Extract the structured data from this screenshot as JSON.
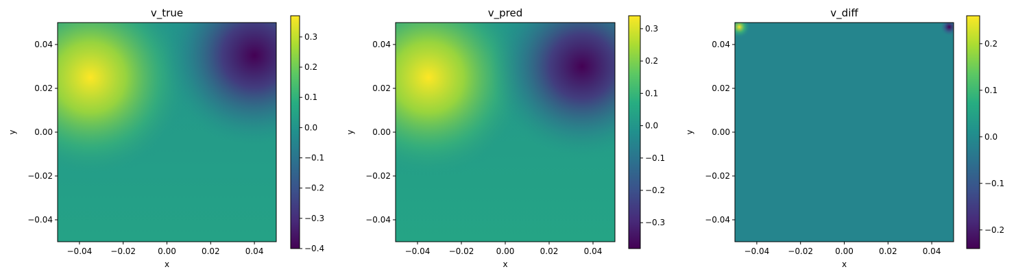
{
  "chart_data": [
    {
      "type": "heatmap",
      "title": "v_true",
      "xlabel": "x",
      "ylabel": "y",
      "xlim": [
        -0.05,
        0.05
      ],
      "ylim": [
        -0.05,
        0.05
      ],
      "xticks": [
        "−0.04",
        "−0.02",
        "0.00",
        "0.02",
        "0.04"
      ],
      "xtick_values": [
        -0.04,
        -0.02,
        0.0,
        0.02,
        0.04
      ],
      "yticks": [
        "−0.04",
        "−0.02",
        "0.00",
        "0.02",
        "0.04"
      ],
      "ytick_values": [
        -0.04,
        -0.02,
        0.0,
        0.02,
        0.04
      ],
      "colorbar": {
        "range": [
          -0.4,
          0.37
        ],
        "ticks": [
          "−0.4",
          "−0.3",
          "−0.2",
          "−0.1",
          "0.0",
          "0.1",
          "0.2",
          "0.3"
        ],
        "tick_values": [
          -0.4,
          -0.3,
          -0.2,
          -0.1,
          0.0,
          0.1,
          0.2,
          0.3
        ]
      },
      "colormap": "viridis",
      "features": [
        {
          "kind": "max",
          "x": -0.035,
          "y": 0.025,
          "value": 0.37
        },
        {
          "kind": "min",
          "x": 0.04,
          "y": 0.035,
          "value": -0.4
        }
      ]
    },
    {
      "type": "heatmap",
      "title": "v_pred",
      "xlabel": "x",
      "ylabel": "y",
      "xlim": [
        -0.05,
        0.05
      ],
      "ylim": [
        -0.05,
        0.05
      ],
      "xticks": [
        "−0.04",
        "−0.02",
        "0.00",
        "0.02",
        "0.04"
      ],
      "xtick_values": [
        -0.04,
        -0.02,
        0.0,
        0.02,
        0.04
      ],
      "yticks": [
        "−0.04",
        "−0.02",
        "0.00",
        "0.02",
        "0.04"
      ],
      "ytick_values": [
        -0.04,
        -0.02,
        0.0,
        0.02,
        0.04
      ],
      "colorbar": {
        "range": [
          -0.38,
          0.34
        ],
        "ticks": [
          "−0.3",
          "−0.2",
          "−0.1",
          "0.0",
          "0.1",
          "0.2",
          "0.3"
        ],
        "tick_values": [
          -0.3,
          -0.2,
          -0.1,
          0.0,
          0.1,
          0.2,
          0.3
        ]
      },
      "colormap": "viridis",
      "features": [
        {
          "kind": "max",
          "x": -0.035,
          "y": 0.025,
          "value": 0.34
        },
        {
          "kind": "min",
          "x": 0.035,
          "y": 0.03,
          "value": -0.38
        }
      ]
    },
    {
      "type": "heatmap",
      "title": "v_diff",
      "xlabel": "x",
      "ylabel": "y",
      "xlim": [
        -0.05,
        0.05
      ],
      "ylim": [
        -0.05,
        0.05
      ],
      "xticks": [
        "−0.04",
        "−0.02",
        "0.00",
        "0.02",
        "0.04"
      ],
      "xtick_values": [
        -0.04,
        -0.02,
        0.0,
        0.02,
        0.04
      ],
      "yticks": [
        "−0.04",
        "−0.02",
        "0.00",
        "0.02",
        "0.04"
      ],
      "ytick_values": [
        -0.04,
        -0.02,
        0.0,
        0.02,
        0.04
      ],
      "colorbar": {
        "range": [
          -0.24,
          0.26
        ],
        "ticks": [
          "−0.2",
          "−0.1",
          "0.0",
          "0.1",
          "0.2"
        ],
        "tick_values": [
          -0.2,
          -0.1,
          0.0,
          0.1,
          0.2
        ]
      },
      "colormap": "viridis",
      "features": [
        {
          "kind": "max",
          "x": -0.048,
          "y": 0.048,
          "value": 0.26
        },
        {
          "kind": "min",
          "x": 0.048,
          "y": 0.048,
          "value": -0.24
        }
      ]
    }
  ]
}
